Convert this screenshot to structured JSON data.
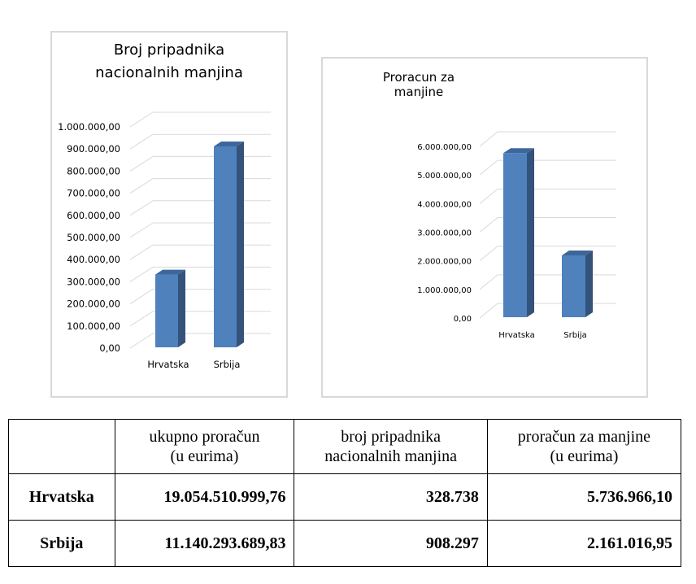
{
  "chart_data": [
    {
      "type": "bar",
      "title_lines": [
        "Broj pripadnika",
        "nacionalnih manjina"
      ],
      "categories": [
        "Hrvatska",
        "Srbija"
      ],
      "values": [
        328738,
        908297
      ],
      "ylim": [
        0,
        1000000
      ],
      "yticks": [
        "0,00",
        "100.000,00",
        "200.000,00",
        "300.000,00",
        "400.000,00",
        "500.000,00",
        "600.000,00",
        "700.000,00",
        "800.000,00",
        "900.000,00",
        "1.000.000,00"
      ]
    },
    {
      "type": "bar",
      "title_lines": [
        "Proracun za manjine"
      ],
      "categories": [
        "Hrvatska",
        "Srbija"
      ],
      "values": [
        5736966.1,
        2161016.95
      ],
      "ylim": [
        0,
        6000000
      ],
      "yticks": [
        "0,00",
        "1.000.000,00",
        "2.000.000,00",
        "3.000.000,00",
        "4.000.000,00",
        "5.000.000,00",
        "6.000.000,00"
      ]
    }
  ],
  "colors": {
    "bar_front": "#4f81bd",
    "bar_side": "#34527a",
    "bar_top": "#3d679b",
    "grid": "#d9d9d9"
  },
  "table": {
    "headers": [
      "",
      "ukupno proračun (u eurima)",
      "broj pripadnika nacionalnih manjina",
      "proračun za manjine (u eurima)"
    ],
    "header_lines": [
      [],
      [
        "ukupno proračun",
        "(u eurima)"
      ],
      [
        "broj pripadnika",
        "nacionalnih manjina"
      ],
      [
        "proračun za manjine",
        "(u eurima)"
      ]
    ],
    "rows": [
      [
        "Hrvatska",
        "19.054.510.999,76",
        "328.738",
        "5.736.966,10"
      ],
      [
        "Srbija",
        "11.140.293.689,83",
        "908.297",
        "2.161.016,95"
      ]
    ]
  }
}
